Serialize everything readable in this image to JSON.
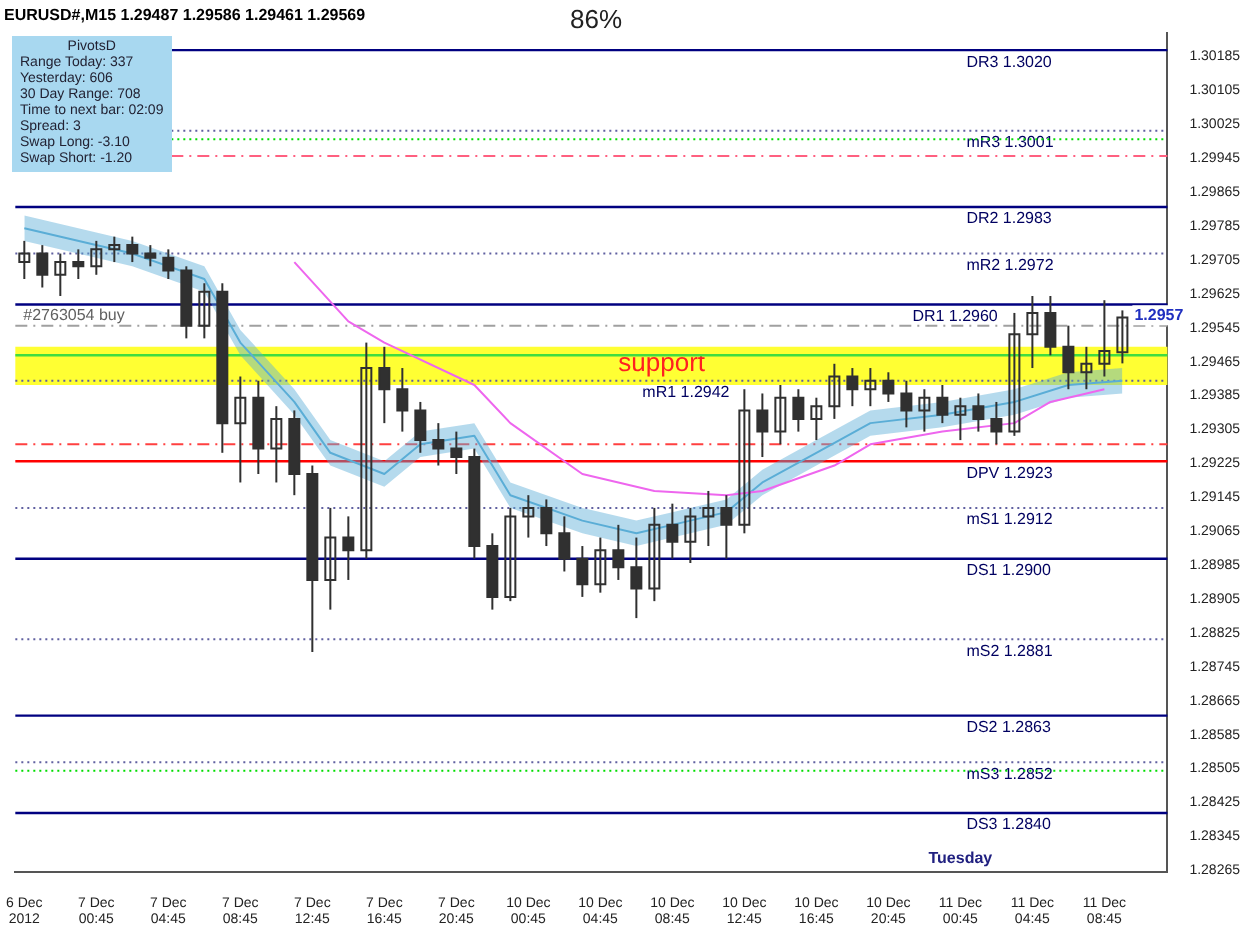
{
  "chart_data": {
    "type": "candlestick",
    "title": "EURUSD#,M15 1.29487 1.29586 1.29461 1.29569",
    "color": "#303030",
    "categories": [
      "6 Dec 2012",
      null,
      null,
      null,
      "7 Dec 00:45",
      null,
      null,
      null,
      "7 Dec 04:45",
      null,
      null,
      null,
      "7 Dec 08:45",
      null,
      null,
      null,
      "7 Dec 12:45",
      null,
      null,
      null,
      "7 Dec 16:45",
      null,
      null,
      null,
      "7 Dec 20:45",
      null,
      null,
      null,
      "10 Dec 00:45",
      null,
      null,
      null,
      "10 Dec 04:45",
      null,
      null,
      null,
      "10 Dec 08:45",
      null,
      null,
      null,
      "10 Dec 12:45",
      null,
      null,
      null,
      "10 Dec 16:45",
      null,
      null,
      null,
      "10 Dec 20:45",
      null,
      null,
      null,
      "11 Dec 00:45",
      null,
      null,
      null,
      "11 Dec 04:45",
      null,
      null,
      null,
      "11 Dec 08:45",
      null,
      null,
      null
    ],
    "ohlc": [
      [
        1.297,
        1.2975,
        1.2966,
        1.2972
      ],
      [
        1.2972,
        1.2974,
        1.2964,
        1.2967
      ],
      [
        1.2967,
        1.2972,
        1.2962,
        1.297
      ],
      [
        1.297,
        1.2973,
        1.2966,
        1.2969
      ],
      [
        1.2969,
        1.2975,
        1.2967,
        1.2973
      ],
      [
        1.2973,
        1.2976,
        1.297,
        1.2974
      ],
      [
        1.2974,
        1.2976,
        1.297,
        1.2972
      ],
      [
        1.2972,
        1.2974,
        1.2969,
        1.2971
      ],
      [
        1.2971,
        1.2973,
        1.2966,
        1.2968
      ],
      [
        1.2968,
        1.2969,
        1.2952,
        1.2955
      ],
      [
        1.2955,
        1.2965,
        1.2952,
        1.2963
      ],
      [
        1.2963,
        1.2965,
        1.2925,
        1.2932
      ],
      [
        1.2932,
        1.2943,
        1.2918,
        1.2938
      ],
      [
        1.2938,
        1.2942,
        1.292,
        1.2926
      ],
      [
        1.2926,
        1.2936,
        1.2918,
        1.2933
      ],
      [
        1.2933,
        1.2935,
        1.2915,
        1.292
      ],
      [
        1.292,
        1.2922,
        1.2878,
        1.2895
      ],
      [
        1.2895,
        1.2912,
        1.2888,
        1.2905
      ],
      [
        1.2905,
        1.291,
        1.2895,
        1.2902
      ],
      [
        1.2902,
        1.2951,
        1.29,
        1.2945
      ],
      [
        1.2945,
        1.295,
        1.2932,
        1.294
      ],
      [
        1.294,
        1.2945,
        1.293,
        1.2935
      ],
      [
        1.2935,
        1.2937,
        1.2925,
        1.2928
      ],
      [
        1.2928,
        1.2932,
        1.2922,
        1.2926
      ],
      [
        1.2926,
        1.293,
        1.292,
        1.2924
      ],
      [
        1.2924,
        1.2926,
        1.29,
        1.2903
      ],
      [
        1.2903,
        1.2906,
        1.2888,
        1.2891
      ],
      [
        1.2891,
        1.2912,
        1.289,
        1.291
      ],
      [
        1.291,
        1.2915,
        1.2905,
        1.2912
      ],
      [
        1.2912,
        1.2914,
        1.2903,
        1.2906
      ],
      [
        1.2906,
        1.291,
        1.2897,
        1.29
      ],
      [
        1.29,
        1.2903,
        1.2891,
        1.2894
      ],
      [
        1.2894,
        1.2905,
        1.2892,
        1.2902
      ],
      [
        1.2902,
        1.2908,
        1.2895,
        1.2898
      ],
      [
        1.2898,
        1.2905,
        1.2886,
        1.2893
      ],
      [
        1.2893,
        1.2912,
        1.289,
        1.2908
      ],
      [
        1.2908,
        1.2913,
        1.29,
        1.2904
      ],
      [
        1.2904,
        1.2912,
        1.2899,
        1.291
      ],
      [
        1.291,
        1.2916,
        1.2903,
        1.2912
      ],
      [
        1.2912,
        1.2915,
        1.29,
        1.2908
      ],
      [
        1.2908,
        1.294,
        1.2906,
        1.2935
      ],
      [
        1.2935,
        1.2939,
        1.2924,
        1.293
      ],
      [
        1.293,
        1.2941,
        1.2927,
        1.2938
      ],
      [
        1.2938,
        1.294,
        1.293,
        1.2933
      ],
      [
        1.2933,
        1.2938,
        1.2928,
        1.2936
      ],
      [
        1.2936,
        1.2946,
        1.2933,
        1.2943
      ],
      [
        1.2943,
        1.2945,
        1.2936,
        1.294
      ],
      [
        1.294,
        1.2945,
        1.2936,
        1.2942
      ],
      [
        1.2942,
        1.2944,
        1.2937,
        1.2939
      ],
      [
        1.2939,
        1.2942,
        1.2931,
        1.2935
      ],
      [
        1.2935,
        1.294,
        1.293,
        1.2938
      ],
      [
        1.2938,
        1.2941,
        1.2932,
        1.2934
      ],
      [
        1.2934,
        1.2938,
        1.2928,
        1.2936
      ],
      [
        1.2936,
        1.2939,
        1.293,
        1.2933
      ],
      [
        1.2933,
        1.2937,
        1.2927,
        1.293
      ],
      [
        1.293,
        1.2958,
        1.2929,
        1.2953
      ],
      [
        1.2953,
        1.2962,
        1.2945,
        1.2958
      ],
      [
        1.2958,
        1.2962,
        1.2948,
        1.295
      ],
      [
        1.295,
        1.2955,
        1.294,
        1.2944
      ],
      [
        1.2944,
        1.295,
        1.294,
        1.2946
      ],
      [
        1.2946,
        1.2961,
        1.2943,
        1.2949
      ],
      [
        1.29487,
        1.29586,
        1.29461,
        1.29569
      ],
      null,
      null
    ],
    "series": [
      {
        "type": "line",
        "color": "#ee66ee",
        "values": [
          null,
          null,
          null,
          null,
          null,
          null,
          null,
          null,
          null,
          null,
          null,
          null,
          null,
          null,
          null,
          1.297,
          null,
          null,
          1.2956,
          null,
          1.2951,
          null,
          null,
          null,
          null,
          1.2941,
          null,
          1.2932,
          null,
          null,
          null,
          1.292,
          null,
          null,
          null,
          1.2916,
          null,
          null,
          null,
          1.2915,
          null,
          1.2916,
          null,
          null,
          null,
          1.2922,
          null,
          1.2927,
          null,
          null,
          null,
          1.293,
          null,
          null,
          null,
          1.2932,
          null,
          1.2937,
          null,
          null,
          1.294,
          null,
          null,
          null
        ]
      },
      {
        "type": "line",
        "color": "#5aaed6",
        "values": [
          1.2978,
          null,
          null,
          null,
          null,
          null,
          1.2972,
          null,
          null,
          null,
          1.2966,
          null,
          1.2951,
          null,
          null,
          1.2937,
          null,
          1.2925,
          null,
          null,
          1.292,
          null,
          1.2927,
          null,
          null,
          1.2929,
          null,
          1.2915,
          null,
          null,
          null,
          1.2909,
          null,
          null,
          1.2906,
          null,
          1.2908,
          null,
          null,
          1.2911,
          null,
          1.2918,
          null,
          null,
          1.2925,
          null,
          null,
          1.2932,
          null,
          null,
          null,
          1.2934,
          null,
          null,
          null,
          1.2937,
          null,
          null,
          1.2941,
          null,
          null,
          1.2942,
          null,
          null
        ],
        "lower": [
          1.2975,
          null,
          null,
          null,
          null,
          null,
          1.2969,
          null,
          null,
          null,
          1.2963,
          null,
          1.2948,
          null,
          null,
          1.2934,
          null,
          1.2922,
          null,
          null,
          1.2917,
          null,
          1.2924,
          null,
          null,
          1.2926,
          null,
          1.2912,
          null,
          null,
          null,
          1.2906,
          null,
          null,
          1.2903,
          null,
          1.2905,
          null,
          null,
          1.2908,
          null,
          1.2915,
          null,
          null,
          1.2922,
          null,
          null,
          1.2929,
          null,
          null,
          null,
          1.2931,
          null,
          null,
          null,
          1.2934,
          null,
          null,
          1.2938,
          null,
          null,
          1.2939,
          null,
          null
        ],
        "upper": [
          1.2981,
          null,
          null,
          null,
          null,
          null,
          1.2975,
          null,
          null,
          null,
          1.2969,
          null,
          1.2954,
          null,
          null,
          1.294,
          null,
          1.2928,
          null,
          null,
          1.2923,
          null,
          1.293,
          null,
          null,
          1.2932,
          null,
          1.2918,
          null,
          null,
          null,
          1.2912,
          null,
          null,
          1.2909,
          null,
          1.2911,
          null,
          null,
          1.2914,
          null,
          1.2921,
          null,
          null,
          1.2928,
          null,
          null,
          1.2935,
          null,
          null,
          null,
          1.2937,
          null,
          null,
          null,
          1.294,
          null,
          null,
          1.2944,
          null,
          null,
          1.2945,
          null,
          null
        ]
      }
    ],
    "ylim": [
      1.2826,
      1.3024
    ],
    "yticks": [
      1.28265,
      1.28345,
      1.28425,
      1.28505,
      1.28585,
      1.28665,
      1.28745,
      1.28825,
      1.28905,
      1.28985,
      1.29065,
      1.29145,
      1.29225,
      1.29305,
      1.29385,
      1.29465,
      1.29545,
      1.29625,
      1.29705,
      1.29785,
      1.29865,
      1.29945,
      1.30025,
      1.30105,
      1.30185
    ],
    "bands": [
      {
        "axis": "y",
        "from": 1.2941,
        "to": 1.295,
        "label": "support",
        "color": "#ffff33"
      }
    ],
    "ref_lines": [
      {
        "axis": "y",
        "value": 1.302,
        "label": "DR3 1.3020",
        "color": "#000080",
        "line_style": "solid"
      },
      {
        "axis": "y",
        "value": 1.3001,
        "label": "mR3 1.3001",
        "color": "#6060a0",
        "line_style": "dotted"
      },
      {
        "axis": "y",
        "value": 1.2999,
        "color": "#00dd00",
        "line_style": "dotted"
      },
      {
        "axis": "y",
        "value": 1.2995,
        "color": "#ff6080",
        "line_style": "dashed"
      },
      {
        "axis": "y",
        "value": 1.2983,
        "label": "DR2 1.2983",
        "color": "#000080",
        "line_style": "solid"
      },
      {
        "axis": "y",
        "value": 1.2972,
        "label": "mR2 1.2972",
        "color": "#6060a0",
        "line_style": "dotted"
      },
      {
        "axis": "y",
        "value": 1.296,
        "label": "DR1 1.2960",
        "color": "#000080",
        "line_style": "solid"
      },
      {
        "axis": "y",
        "value": 1.2955,
        "label": "#2763054 buy",
        "color": "#a0a0a0",
        "line_style": "dashed"
      },
      {
        "axis": "y",
        "value": 1.2948,
        "color": "#40dd40",
        "line_style": "solid"
      },
      {
        "axis": "y",
        "value": 1.2942,
        "label": "mR1 1.2942",
        "color": "#6060a0",
        "line_style": "dotted"
      },
      {
        "axis": "y",
        "value": 1.2927,
        "color": "#ff4040",
        "line_style": "dashed"
      },
      {
        "axis": "y",
        "value": 1.2923,
        "label": "DPV 1.2923",
        "color": "#ff0000",
        "line_style": "solid"
      },
      {
        "axis": "y",
        "value": 1.2912,
        "label": "mS1 1.2912",
        "color": "#6060a0",
        "line_style": "dotted"
      },
      {
        "axis": "y",
        "value": 1.29,
        "label": "DS1 1.2900",
        "color": "#000080",
        "line_style": "solid"
      },
      {
        "axis": "y",
        "value": 1.2881,
        "label": "mS2 1.2881",
        "color": "#6060a0",
        "line_style": "dotted"
      },
      {
        "axis": "y",
        "value": 1.2863,
        "label": "DS2 1.2863",
        "color": "#000080",
        "line_style": "solid"
      },
      {
        "axis": "y",
        "value": 1.2852,
        "label": "mS3 1.2852",
        "color": "#6060a0",
        "line_style": "dotted"
      },
      {
        "axis": "y",
        "value": 1.285,
        "color": "#00dd00",
        "line_style": "dotted"
      },
      {
        "axis": "y",
        "value": 1.284,
        "label": "DS3 1.2840",
        "color": "#000080",
        "line_style": "solid"
      }
    ],
    "annotations": [
      "86%",
      "PivotsD",
      "Range Today: 337",
      "Yesterday: 606",
      "30 Day Range: 708",
      "Time to next bar: 02:09",
      "Spread: 3",
      "Swap Long: -3.10",
      "Swap Short: -1.20",
      "Tuesday",
      {
        "text": "1.2957",
        "y": 1.2957
      }
    ]
  }
}
